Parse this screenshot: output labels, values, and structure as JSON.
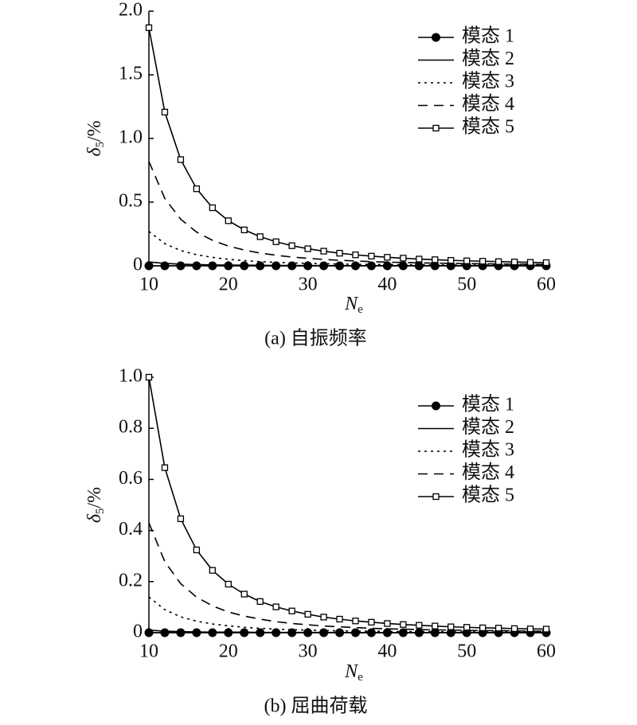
{
  "chart_data": [
    {
      "type": "line",
      "caption": "(a) 自振频率",
      "xlabel": {
        "symbol": "N",
        "sub": "e"
      },
      "ylabel": {
        "symbol": "δ",
        "sub": "5",
        "unit": "/%"
      },
      "x": [
        10,
        12,
        14,
        16,
        18,
        20,
        22,
        24,
        26,
        28,
        30,
        32,
        34,
        36,
        38,
        40,
        42,
        44,
        46,
        48,
        50,
        52,
        54,
        56,
        58,
        60
      ],
      "xlim": [
        10,
        60
      ],
      "xticks": [
        10,
        20,
        30,
        40,
        50,
        60
      ],
      "ylim": [
        0,
        2
      ],
      "yticks": [
        0,
        0.5,
        {
          "value": 1,
          "label": "1.0"
        },
        1.5,
        {
          "value": 2,
          "label": "2.0"
        }
      ],
      "legend": "upper right",
      "series": [
        {
          "name": "模态 1",
          "color": "#000000",
          "dash": "solid",
          "marker": "circle",
          "values": [
            0,
            0,
            0,
            0,
            0,
            0,
            0,
            0,
            0,
            0,
            0,
            0,
            0,
            0,
            0,
            0,
            0,
            0,
            0,
            0,
            0,
            0,
            0,
            0,
            0,
            0
          ]
        },
        {
          "name": "模态 2",
          "color": "#000000",
          "dash": "solid",
          "marker": "none",
          "values": [
            0.03,
            0.019,
            0.013,
            0.01,
            0.007,
            0.006,
            0.005,
            0.004,
            0.003,
            0.003,
            0.002,
            0.002,
            0.002,
            0.001,
            0.001,
            0.001,
            0.001,
            0.001,
            0.001,
            0.001,
            0.001,
            0.001,
            0,
            0,
            0,
            0
          ]
        },
        {
          "name": "模态 3",
          "color": "#000000",
          "dash": "dotted",
          "marker": "none",
          "values": [
            0.27,
            0.174,
            0.12,
            0.087,
            0.066,
            0.051,
            0.041,
            0.033,
            0.027,
            0.023,
            0.019,
            0.017,
            0.014,
            0.012,
            0.011,
            0.01,
            0.009,
            0.008,
            0.007,
            0.006,
            0.006,
            0.005,
            0.005,
            0.004,
            0.004,
            0.004
          ]
        },
        {
          "name": "模态 4",
          "color": "#000000",
          "dash": "dashed",
          "marker": "none",
          "values": [
            0.82,
            0.529,
            0.366,
            0.265,
            0.2,
            0.155,
            0.124,
            0.1,
            0.083,
            0.069,
            0.059,
            0.05,
            0.043,
            0.038,
            0.033,
            0.029,
            0.026,
            0.023,
            0.021,
            0.019,
            0.017,
            0.016,
            0.014,
            0.013,
            0.012,
            0.011
          ]
        },
        {
          "name": "模态 5",
          "color": "#000000",
          "dash": "solid",
          "marker": "square",
          "values": [
            1.87,
            1.207,
            0.834,
            0.605,
            0.456,
            0.354,
            0.282,
            0.229,
            0.189,
            0.158,
            0.134,
            0.115,
            0.099,
            0.086,
            0.076,
            0.067,
            0.06,
            0.053,
            0.048,
            0.043,
            0.039,
            0.036,
            0.033,
            0.03,
            0.027,
            0.025
          ]
        }
      ]
    },
    {
      "type": "line",
      "caption": "(b) 屈曲荷载",
      "xlabel": {
        "symbol": "N",
        "sub": "e"
      },
      "ylabel": {
        "symbol": "δ",
        "sub": "5",
        "unit": "/%"
      },
      "x": [
        10,
        12,
        14,
        16,
        18,
        20,
        22,
        24,
        26,
        28,
        30,
        32,
        34,
        36,
        38,
        40,
        42,
        44,
        46,
        48,
        50,
        52,
        54,
        56,
        58,
        60
      ],
      "xlim": [
        10,
        60
      ],
      "xticks": [
        10,
        20,
        30,
        40,
        50,
        60
      ],
      "ylim": [
        0,
        1
      ],
      "yticks": [
        0,
        0.2,
        0.4,
        0.6,
        0.8,
        {
          "value": 1,
          "label": "1.0"
        }
      ],
      "legend": "upper right",
      "series": [
        {
          "name": "模态 1",
          "color": "#000000",
          "dash": "solid",
          "marker": "circle",
          "values": [
            0,
            0,
            0,
            0,
            0,
            0,
            0,
            0,
            0,
            0,
            0,
            0,
            0,
            0,
            0,
            0,
            0,
            0,
            0,
            0,
            0,
            0,
            0,
            0,
            0,
            0
          ]
        },
        {
          "name": "模态 2",
          "color": "#000000",
          "dash": "solid",
          "marker": "none",
          "values": [
            0.01,
            0.006,
            0.004,
            0.003,
            0.002,
            0.002,
            0.002,
            0.001,
            0.001,
            0.001,
            0.001,
            0.001,
            0.001,
            0,
            0,
            0,
            0,
            0,
            0,
            0,
            0,
            0,
            0,
            0,
            0,
            0
          ]
        },
        {
          "name": "模态 3",
          "color": "#000000",
          "dash": "dotted",
          "marker": "none",
          "values": [
            0.14,
            0.09,
            0.062,
            0.045,
            0.034,
            0.027,
            0.021,
            0.017,
            0.014,
            0.012,
            0.01,
            0.009,
            0.007,
            0.006,
            0.006,
            0.005,
            0.004,
            0.004,
            0.004,
            0.003,
            0.003,
            0.003,
            0.002,
            0.002,
            0.002,
            0.002
          ]
        },
        {
          "name": "模态 4",
          "color": "#000000",
          "dash": "dashed",
          "marker": "none",
          "values": [
            0.43,
            0.278,
            0.192,
            0.139,
            0.105,
            0.081,
            0.065,
            0.053,
            0.043,
            0.036,
            0.031,
            0.026,
            0.023,
            0.02,
            0.017,
            0.015,
            0.014,
            0.012,
            0.011,
            0.01,
            0.009,
            0.008,
            0.008,
            0.007,
            0.006,
            0.006
          ]
        },
        {
          "name": "模态 5",
          "color": "#000000",
          "dash": "solid",
          "marker": "square",
          "values": [
            1.0,
            0.646,
            0.446,
            0.324,
            0.244,
            0.19,
            0.151,
            0.122,
            0.101,
            0.085,
            0.072,
            0.061,
            0.053,
            0.046,
            0.041,
            0.036,
            0.032,
            0.029,
            0.026,
            0.023,
            0.021,
            0.019,
            0.018,
            0.016,
            0.015,
            0.014
          ]
        }
      ]
    }
  ]
}
